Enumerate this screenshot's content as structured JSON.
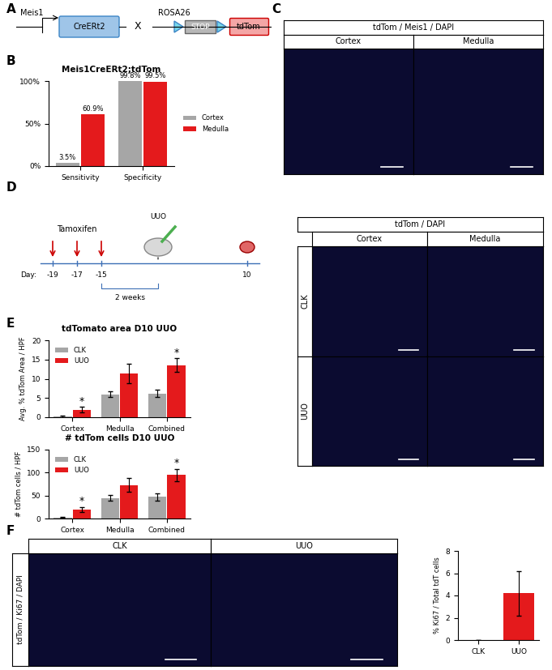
{
  "panel_labels": [
    "A",
    "B",
    "C",
    "D",
    "E",
    "F"
  ],
  "diagram_A": {
    "promoter": "Meis1",
    "cre": "CreERt2",
    "cross": "X",
    "locus": "ROSA26",
    "stop": "STOP",
    "reporter": "tdTom"
  },
  "images_C": {
    "header": "tdTom / Meis1 / DAPI",
    "columns": [
      "Cortex",
      "Medulla"
    ]
  },
  "timeline_D": {
    "injection": "Tamoxifen",
    "surgery": "UUO",
    "day_label": "Day:",
    "days": [
      "-19",
      "-17",
      "-15",
      "10"
    ],
    "interval": "2 weeks"
  },
  "images_D": {
    "header": "tdTom / DAPI",
    "columns": [
      "Cortex",
      "Medulla"
    ],
    "rows": [
      "CLK",
      "UUO"
    ]
  },
  "images_F": {
    "header": "tdTom / Ki67 / DAPI",
    "columns": [
      "CLK",
      "UUO"
    ]
  },
  "chart_data": [
    {
      "type": "bar",
      "title": "Meis1CreERt2;tdTom",
      "categories": [
        "Sensitivity",
        "Specificity"
      ],
      "series": [
        {
          "name": "Cortex",
          "color": "#a6a6a6",
          "values": [
            3.5,
            99.8
          ],
          "value_labels": [
            "3.5%",
            "99.8%"
          ]
        },
        {
          "name": "Medulla",
          "color": "#e41a1c",
          "values": [
            60.9,
            99.5
          ],
          "value_labels": [
            "60.9%",
            "99.5%"
          ]
        }
      ],
      "ylim": [
        0,
        100
      ],
      "yticks": [
        {
          "value": 0,
          "label": "0%"
        },
        {
          "value": 50,
          "label": "50%"
        },
        {
          "value": 100,
          "label": "100%"
        }
      ],
      "data_labels": true,
      "legend": "right"
    },
    {
      "type": "bar",
      "title": "tdTomato area D10 UUO",
      "y_label": "Avg. % tdTom Area / HPF",
      "categories": [
        "Cortex",
        "Medulla",
        "Combined"
      ],
      "series": [
        {
          "name": "CLK",
          "color": "#a6a6a6",
          "values": [
            0.3,
            6.0,
            6.2
          ],
          "errors": [
            0.2,
            0.8,
            0.9
          ]
        },
        {
          "name": "UUO",
          "color": "#e41a1c",
          "values": [
            2.0,
            11.3,
            13.5
          ],
          "errors": [
            0.7,
            2.5,
            1.8
          ]
        }
      ],
      "annotations": [
        {
          "category": "Cortex",
          "series": "UUO",
          "text": "*"
        },
        {
          "category": "Combined",
          "series": "UUO",
          "text": "*"
        }
      ],
      "ylim": [
        0,
        20
      ],
      "yticks": [
        0,
        5,
        10,
        15,
        20
      ],
      "legend": "upper left"
    },
    {
      "type": "bar",
      "title": "# tdTom cells D10 UUO",
      "y_label": "# tdTom cells / HPF",
      "categories": [
        "Cortex",
        "Medulla",
        "Combined"
      ],
      "series": [
        {
          "name": "CLK",
          "color": "#a6a6a6",
          "values": [
            2,
            45,
            47
          ],
          "errors": [
            1,
            7,
            8
          ]
        },
        {
          "name": "UUO",
          "color": "#e41a1c",
          "values": [
            20,
            73,
            95
          ],
          "errors": [
            5,
            15,
            13
          ]
        }
      ],
      "annotations": [
        {
          "category": "Cortex",
          "series": "UUO",
          "text": "*"
        },
        {
          "category": "Combined",
          "series": "UUO",
          "text": "*"
        }
      ],
      "ylim": [
        0,
        150
      ],
      "yticks": [
        0,
        50,
        100,
        150
      ],
      "legend": "upper left"
    },
    {
      "type": "bar",
      "y_label": "% Ki67 / Total tdT cells",
      "categories": [
        "CLK",
        "UUO"
      ],
      "values": [
        0,
        4.2
      ],
      "errors": [
        0,
        2.0
      ],
      "color": "#e41a1c",
      "ylim": [
        0,
        8
      ],
      "yticks": [
        0,
        2,
        4,
        6,
        8
      ]
    }
  ]
}
